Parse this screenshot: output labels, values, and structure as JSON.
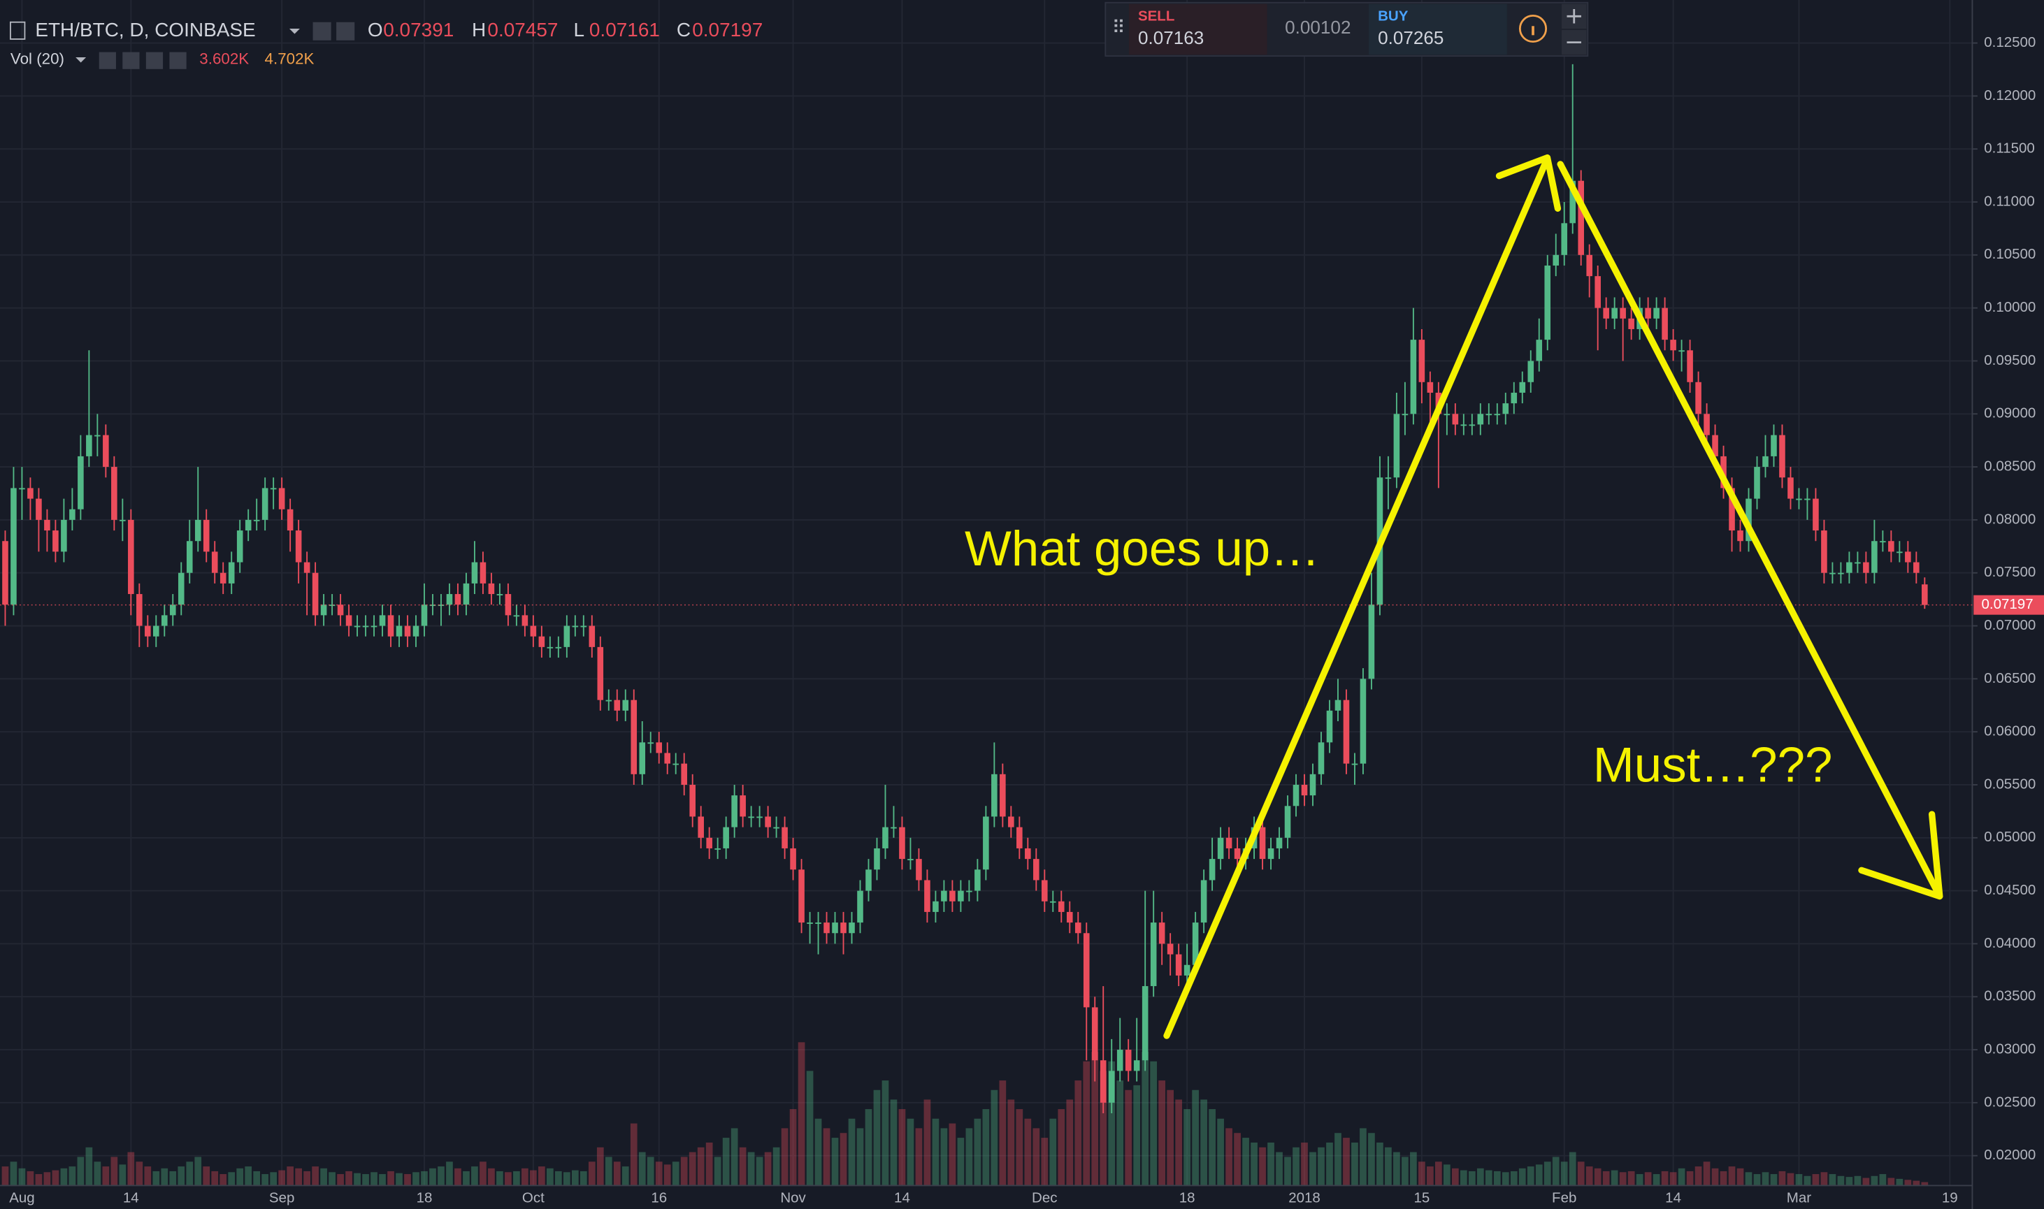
{
  "chart_data": {
    "type": "candlestick",
    "title": "ETH/BTC, D, COINBASE",
    "ohlc_labels": [
      "O",
      "H",
      "L",
      "C"
    ],
    "volume_title": "Vol (20)",
    "volume_last_label": "3.602K",
    "volume_ma_label": "4.702K",
    "trade_panel": {
      "sell_label": "SELL",
      "sell_price": "0.07163",
      "spread": "0.00102",
      "buy_label": "BUY",
      "buy_price": "0.07265"
    },
    "annotations": [
      "What goes up…",
      "Must…???"
    ],
    "up_color": "#53b987",
    "down_color": "#eb4d5c",
    "grid": true,
    "ylim": [
      0.01718,
      0.12906
    ],
    "yticks": [
      {
        "value": 0.02,
        "label": "0.02000"
      },
      {
        "value": 0.025,
        "label": "0.02500"
      },
      {
        "value": 0.03,
        "label": "0.03000"
      },
      {
        "value": 0.035,
        "label": "0.03500"
      },
      {
        "value": 0.04,
        "label": "0.04000"
      },
      {
        "value": 0.045,
        "label": "0.04500"
      },
      {
        "value": 0.05,
        "label": "0.05000"
      },
      {
        "value": 0.055,
        "label": "0.05500"
      },
      {
        "value": 0.06,
        "label": "0.06000"
      },
      {
        "value": 0.065,
        "label": "0.06500"
      },
      {
        "value": 0.07,
        "label": "0.07000"
      },
      {
        "value": 0.075,
        "label": "0.07500"
      },
      {
        "value": 0.08,
        "label": "0.08000"
      },
      {
        "value": 0.085,
        "label": "0.08500"
      },
      {
        "value": 0.09,
        "label": "0.09000"
      },
      {
        "value": 0.095,
        "label": "0.09500"
      },
      {
        "value": 0.1,
        "label": "0.10000"
      },
      {
        "value": 0.105,
        "label": "0.10500"
      },
      {
        "value": 0.11,
        "label": "0.11000"
      },
      {
        "value": 0.115,
        "label": "0.11500"
      },
      {
        "value": 0.12,
        "label": "0.12000"
      },
      {
        "value": 0.125,
        "label": "0.12500"
      }
    ],
    "categories": [
      null,
      null,
      "Aug",
      null,
      null,
      null,
      null,
      null,
      null,
      null,
      null,
      null,
      null,
      null,
      null,
      "14",
      null,
      null,
      null,
      null,
      null,
      null,
      null,
      null,
      null,
      null,
      null,
      null,
      null,
      null,
      null,
      null,
      null,
      "Sep",
      null,
      null,
      null,
      null,
      null,
      null,
      null,
      null,
      null,
      null,
      null,
      null,
      null,
      null,
      null,
      null,
      "18",
      null,
      null,
      null,
      null,
      null,
      null,
      null,
      null,
      null,
      null,
      null,
      null,
      "Oct",
      null,
      null,
      null,
      null,
      null,
      null,
      null,
      null,
      null,
      null,
      null,
      null,
      null,
      null,
      "16",
      null,
      null,
      null,
      null,
      null,
      null,
      null,
      null,
      null,
      null,
      null,
      null,
      null,
      null,
      null,
      "Nov",
      null,
      null,
      null,
      null,
      null,
      null,
      null,
      null,
      null,
      null,
      null,
      null,
      "14",
      null,
      null,
      null,
      null,
      null,
      null,
      null,
      null,
      null,
      null,
      null,
      null,
      null,
      null,
      null,
      null,
      "Dec",
      null,
      null,
      null,
      null,
      null,
      null,
      null,
      null,
      null,
      null,
      null,
      null,
      null,
      null,
      null,
      null,
      "18",
      null,
      null,
      null,
      null,
      null,
      null,
      null,
      null,
      null,
      null,
      null,
      null,
      null,
      "2018",
      null,
      null,
      null,
      null,
      null,
      null,
      null,
      null,
      null,
      null,
      null,
      null,
      null,
      "15",
      null,
      null,
      null,
      null,
      null,
      null,
      null,
      null,
      null,
      null,
      null,
      null,
      null,
      null,
      null,
      null,
      "Feb",
      null,
      null,
      null,
      null,
      null,
      null,
      null,
      null,
      null,
      null,
      null,
      null,
      "14",
      null,
      null,
      null,
      null,
      null,
      null,
      null,
      null,
      null,
      null,
      null,
      null,
      null,
      null,
      "Mar",
      null,
      null,
      null,
      null,
      null,
      null,
      null,
      null,
      null,
      null,
      null,
      null,
      null,
      null,
      null,
      null,
      null,
      "19"
    ],
    "open": [
      0.078,
      0.072,
      0.083,
      0.083,
      0.082,
      0.08,
      0.079,
      0.077,
      0.08,
      0.081,
      0.086,
      0.088,
      0.088,
      0.085,
      0.08,
      0.08,
      0.073,
      0.07,
      0.069,
      0.07,
      0.071,
      0.072,
      0.075,
      0.078,
      0.08,
      0.077,
      0.075,
      0.074,
      0.076,
      0.079,
      0.08,
      0.08,
      0.083,
      0.083,
      0.081,
      0.079,
      0.076,
      0.075,
      0.071,
      0.072,
      0.072,
      0.071,
      0.07,
      0.07,
      0.07,
      0.07,
      0.071,
      0.069,
      0.07,
      0.069,
      0.07,
      0.072,
      0.072,
      0.072,
      0.073,
      0.072,
      0.074,
      0.076,
      0.074,
      0.073,
      0.073,
      0.071,
      0.071,
      0.07,
      0.069,
      0.068,
      0.068,
      0.068,
      0.07,
      0.07,
      0.07,
      0.068,
      0.063,
      0.063,
      0.062,
      0.063,
      0.056,
      0.059,
      0.059,
      0.058,
      0.057,
      0.057,
      0.055,
      0.052,
      0.05,
      0.049,
      0.049,
      0.051,
      0.054,
      0.052,
      0.052,
      0.052,
      0.051,
      0.051,
      0.049,
      0.047,
      0.042,
      0.042,
      0.042,
      0.041,
      0.042,
      0.041,
      0.042,
      0.045,
      0.047,
      0.049,
      0.051,
      0.051,
      0.048,
      0.048,
      0.046,
      0.043,
      0.044,
      0.045,
      0.044,
      0.045,
      0.045,
      0.047,
      0.052,
      0.056,
      0.052,
      0.051,
      0.049,
      0.048,
      0.046,
      0.044,
      0.044,
      0.043,
      0.042,
      0.041,
      0.034,
      0.029,
      0.025,
      0.028,
      0.03,
      0.028,
      0.029,
      0.036,
      0.042,
      0.04,
      0.039,
      0.037,
      0.038,
      0.042,
      0.046,
      0.048,
      0.05,
      0.049,
      0.048,
      0.049,
      0.051,
      0.048,
      0.049,
      0.05,
      0.053,
      0.055,
      0.054,
      0.056,
      0.059,
      0.062,
      0.063,
      0.057,
      0.057,
      0.065,
      0.072,
      0.084,
      0.084,
      0.09,
      0.09,
      0.097,
      0.093,
      0.092,
      0.09,
      0.09,
      0.089,
      0.089,
      0.089,
      0.09,
      0.09,
      0.09,
      0.091,
      0.092,
      0.093,
      0.095,
      0.097,
      0.104,
      0.105,
      0.108,
      0.112,
      0.105,
      0.103,
      0.1,
      0.099,
      0.1,
      0.099,
      0.098,
      0.1,
      0.099,
      0.1,
      0.097,
      0.096,
      0.096,
      0.093,
      0.09,
      0.088,
      0.086,
      0.083,
      0.079,
      0.078,
      0.082,
      0.085,
      0.086,
      0.088,
      0.084,
      0.082,
      0.082,
      0.082,
      0.079,
      0.075,
      0.075,
      0.075,
      0.076,
      0.076,
      0.075,
      0.078,
      0.078,
      0.077,
      0.077,
      0.076,
      0.07391,
      null,
      null,
      null
    ],
    "high": [
      0.079,
      0.085,
      0.085,
      0.084,
      0.083,
      0.081,
      0.08,
      0.082,
      0.083,
      0.088,
      0.096,
      0.09,
      0.089,
      0.086,
      0.082,
      0.081,
      0.074,
      0.071,
      0.071,
      0.072,
      0.073,
      0.076,
      0.08,
      0.085,
      0.081,
      0.078,
      0.076,
      0.077,
      0.08,
      0.081,
      0.082,
      0.084,
      0.084,
      0.084,
      0.082,
      0.08,
      0.077,
      0.076,
      0.073,
      0.073,
      0.073,
      0.072,
      0.071,
      0.071,
      0.071,
      0.072,
      0.072,
      0.071,
      0.071,
      0.071,
      0.074,
      0.073,
      0.073,
      0.074,
      0.074,
      0.075,
      0.078,
      0.077,
      0.075,
      0.074,
      0.074,
      0.072,
      0.072,
      0.071,
      0.07,
      0.069,
      0.069,
      0.071,
      0.071,
      0.071,
      0.071,
      0.069,
      0.064,
      0.064,
      0.064,
      0.064,
      0.061,
      0.06,
      0.06,
      0.059,
      0.058,
      0.058,
      0.056,
      0.053,
      0.051,
      0.05,
      0.052,
      0.055,
      0.055,
      0.053,
      0.053,
      0.053,
      0.052,
      0.052,
      0.05,
      0.048,
      0.043,
      0.043,
      0.043,
      0.043,
      0.043,
      0.043,
      0.046,
      0.048,
      0.05,
      0.055,
      0.053,
      0.052,
      0.05,
      0.049,
      0.047,
      0.045,
      0.046,
      0.046,
      0.046,
      0.046,
      0.048,
      0.053,
      0.059,
      0.057,
      0.053,
      0.052,
      0.05,
      0.049,
      0.047,
      0.045,
      0.045,
      0.044,
      0.043,
      0.042,
      0.035,
      0.036,
      0.031,
      0.033,
      0.031,
      0.033,
      0.045,
      0.045,
      0.043,
      0.041,
      0.04,
      0.04,
      0.043,
      0.047,
      0.05,
      0.051,
      0.051,
      0.05,
      0.05,
      0.052,
      0.052,
      0.05,
      0.051,
      0.054,
      0.056,
      0.056,
      0.057,
      0.06,
      0.063,
      0.065,
      0.064,
      0.058,
      0.066,
      0.075,
      0.086,
      0.086,
      0.092,
      0.093,
      0.1,
      0.098,
      0.094,
      0.093,
      0.091,
      0.091,
      0.09,
      0.09,
      0.091,
      0.091,
      0.091,
      0.092,
      0.093,
      0.094,
      0.096,
      0.099,
      0.105,
      0.107,
      0.11,
      0.123,
      0.113,
      0.106,
      0.104,
      0.101,
      0.101,
      0.101,
      0.1,
      0.101,
      0.101,
      0.101,
      0.101,
      0.098,
      0.097,
      0.097,
      0.094,
      0.091,
      0.089,
      0.087,
      0.084,
      0.08,
      0.083,
      0.086,
      0.088,
      0.089,
      0.089,
      0.085,
      0.083,
      0.083,
      0.083,
      0.08,
      0.076,
      0.076,
      0.077,
      0.077,
      0.077,
      0.08,
      0.079,
      0.079,
      0.078,
      0.078,
      0.077,
      0.07457,
      null,
      null,
      null
    ],
    "low": [
      0.07,
      0.071,
      0.08,
      0.08,
      0.077,
      0.077,
      0.076,
      0.076,
      0.079,
      0.08,
      0.085,
      0.086,
      0.084,
      0.079,
      0.078,
      0.071,
      0.068,
      0.068,
      0.068,
      0.069,
      0.07,
      0.071,
      0.074,
      0.077,
      0.076,
      0.074,
      0.073,
      0.073,
      0.075,
      0.078,
      0.079,
      0.079,
      0.081,
      0.08,
      0.077,
      0.074,
      0.071,
      0.07,
      0.07,
      0.071,
      0.07,
      0.069,
      0.069,
      0.069,
      0.069,
      0.069,
      0.068,
      0.068,
      0.068,
      0.068,
      0.069,
      0.071,
      0.07,
      0.071,
      0.071,
      0.071,
      0.073,
      0.073,
      0.072,
      0.072,
      0.07,
      0.07,
      0.069,
      0.068,
      0.067,
      0.067,
      0.067,
      0.067,
      0.069,
      0.069,
      0.067,
      0.062,
      0.062,
      0.061,
      0.061,
      0.055,
      0.055,
      0.058,
      0.057,
      0.056,
      0.056,
      0.054,
      0.051,
      0.049,
      0.048,
      0.048,
      0.048,
      0.05,
      0.051,
      0.051,
      0.051,
      0.05,
      0.05,
      0.048,
      0.046,
      0.041,
      0.04,
      0.039,
      0.04,
      0.04,
      0.039,
      0.04,
      0.041,
      0.044,
      0.046,
      0.048,
      0.05,
      0.047,
      0.047,
      0.045,
      0.042,
      0.042,
      0.043,
      0.043,
      0.043,
      0.044,
      0.044,
      0.046,
      0.051,
      0.051,
      0.05,
      0.048,
      0.047,
      0.045,
      0.043,
      0.043,
      0.042,
      0.041,
      0.04,
      0.029,
      0.027,
      0.024,
      0.024,
      0.027,
      0.027,
      0.027,
      0.028,
      0.035,
      0.038,
      0.037,
      0.036,
      0.036,
      0.037,
      0.041,
      0.045,
      0.047,
      0.048,
      0.047,
      0.047,
      0.048,
      0.047,
      0.047,
      0.048,
      0.049,
      0.052,
      0.053,
      0.053,
      0.055,
      0.058,
      0.061,
      0.056,
      0.055,
      0.056,
      0.064,
      0.071,
      0.081,
      0.083,
      0.088,
      0.089,
      0.091,
      0.088,
      0.083,
      0.088,
      0.088,
      0.088,
      0.088,
      0.088,
      0.089,
      0.089,
      0.089,
      0.09,
      0.091,
      0.092,
      0.094,
      0.096,
      0.103,
      0.104,
      0.107,
      0.104,
      0.101,
      0.096,
      0.098,
      0.098,
      0.095,
      0.097,
      0.097,
      0.098,
      0.098,
      0.096,
      0.095,
      0.094,
      0.092,
      0.089,
      0.087,
      0.085,
      0.082,
      0.077,
      0.077,
      0.077,
      0.081,
      0.084,
      0.085,
      0.083,
      0.081,
      0.081,
      0.08,
      0.078,
      0.074,
      0.074,
      0.074,
      0.074,
      0.075,
      0.074,
      0.074,
      0.077,
      0.076,
      0.076,
      0.075,
      0.074,
      0.07161,
      null,
      null,
      null
    ],
    "close": [
      0.072,
      0.083,
      0.083,
      0.082,
      0.08,
      0.079,
      0.077,
      0.08,
      0.081,
      0.086,
      0.088,
      0.088,
      0.085,
      0.08,
      0.08,
      0.073,
      0.07,
      0.069,
      0.07,
      0.071,
      0.072,
      0.075,
      0.078,
      0.08,
      0.077,
      0.075,
      0.074,
      0.076,
      0.079,
      0.08,
      0.08,
      0.083,
      0.083,
      0.081,
      0.079,
      0.076,
      0.075,
      0.071,
      0.072,
      0.072,
      0.071,
      0.07,
      0.07,
      0.07,
      0.07,
      0.071,
      0.069,
      0.07,
      0.069,
      0.07,
      0.072,
      0.072,
      0.072,
      0.073,
      0.072,
      0.074,
      0.076,
      0.074,
      0.073,
      0.073,
      0.071,
      0.071,
      0.07,
      0.069,
      0.068,
      0.068,
      0.068,
      0.07,
      0.07,
      0.07,
      0.068,
      0.063,
      0.063,
      0.062,
      0.063,
      0.056,
      0.059,
      0.059,
      0.058,
      0.057,
      0.057,
      0.055,
      0.052,
      0.05,
      0.049,
      0.049,
      0.051,
      0.054,
      0.052,
      0.052,
      0.052,
      0.051,
      0.051,
      0.049,
      0.047,
      0.042,
      0.042,
      0.042,
      0.041,
      0.042,
      0.041,
      0.042,
      0.045,
      0.047,
      0.049,
      0.051,
      0.051,
      0.048,
      0.048,
      0.046,
      0.043,
      0.044,
      0.045,
      0.044,
      0.045,
      0.045,
      0.047,
      0.052,
      0.056,
      0.052,
      0.051,
      0.049,
      0.048,
      0.046,
      0.044,
      0.044,
      0.043,
      0.042,
      0.041,
      0.034,
      0.029,
      0.025,
      0.028,
      0.03,
      0.028,
      0.029,
      0.036,
      0.042,
      0.04,
      0.039,
      0.037,
      0.038,
      0.042,
      0.046,
      0.048,
      0.05,
      0.049,
      0.048,
      0.049,
      0.051,
      0.048,
      0.049,
      0.05,
      0.053,
      0.055,
      0.054,
      0.056,
      0.059,
      0.062,
      0.063,
      0.057,
      0.057,
      0.065,
      0.072,
      0.084,
      0.084,
      0.09,
      0.09,
      0.097,
      0.093,
      0.092,
      0.09,
      0.09,
      0.089,
      0.089,
      0.089,
      0.09,
      0.09,
      0.09,
      0.091,
      0.092,
      0.093,
      0.095,
      0.097,
      0.104,
      0.105,
      0.108,
      0.112,
      0.105,
      0.103,
      0.1,
      0.099,
      0.1,
      0.099,
      0.098,
      0.1,
      0.099,
      0.1,
      0.097,
      0.096,
      0.096,
      0.093,
      0.09,
      0.088,
      0.086,
      0.083,
      0.079,
      0.078,
      0.082,
      0.085,
      0.086,
      0.088,
      0.084,
      0.082,
      0.082,
      0.082,
      0.079,
      0.075,
      0.075,
      0.075,
      0.076,
      0.076,
      0.075,
      0.078,
      0.078,
      0.077,
      0.077,
      0.076,
      0.075,
      0.07197,
      null,
      null,
      null
    ],
    "volume": [
      20,
      25,
      18,
      15,
      12,
      14,
      16,
      18,
      20,
      30,
      40,
      25,
      20,
      30,
      22,
      35,
      25,
      20,
      15,
      18,
      15,
      20,
      25,
      30,
      20,
      15,
      12,
      14,
      18,
      20,
      15,
      12,
      14,
      16,
      20,
      18,
      15,
      20,
      18,
      14,
      12,
      15,
      13,
      12,
      14,
      12,
      15,
      13,
      12,
      14,
      15,
      18,
      20,
      25,
      18,
      15,
      20,
      25,
      18,
      15,
      14,
      15,
      18,
      16,
      20,
      18,
      15,
      14,
      16,
      15,
      25,
      40,
      30,
      25,
      20,
      65,
      35,
      30,
      25,
      22,
      25,
      30,
      35,
      40,
      45,
      30,
      50,
      60,
      40,
      35,
      30,
      35,
      40,
      60,
      80,
      150,
      120,
      70,
      60,
      50,
      55,
      70,
      60,
      80,
      100,
      110,
      90,
      80,
      70,
      60,
      90,
      70,
      60,
      65,
      50,
      60,
      70,
      80,
      100,
      110,
      90,
      80,
      70,
      60,
      50,
      70,
      80,
      90,
      110,
      130,
      140,
      120,
      130,
      110,
      100,
      105,
      140,
      130,
      110,
      100,
      90,
      80,
      100,
      90,
      80,
      70,
      60,
      55,
      50,
      45,
      40,
      45,
      35,
      30,
      40,
      45,
      35,
      40,
      45,
      55,
      50,
      45,
      60,
      55,
      45,
      40,
      35,
      30,
      35,
      25,
      20,
      25,
      22,
      18,
      16,
      15,
      18,
      16,
      15,
      14,
      15,
      18,
      20,
      22,
      25,
      30,
      25,
      35,
      25,
      20,
      18,
      15,
      16,
      14,
      15,
      12,
      14,
      12,
      15,
      14,
      18,
      15,
      20,
      25,
      18,
      15,
      20,
      18,
      14,
      12,
      14,
      12,
      15,
      13,
      12,
      10,
      12,
      14,
      12,
      10,
      9,
      10,
      8,
      10,
      12,
      8,
      7,
      6,
      5,
      3.602,
      null,
      null,
      null
    ]
  }
}
